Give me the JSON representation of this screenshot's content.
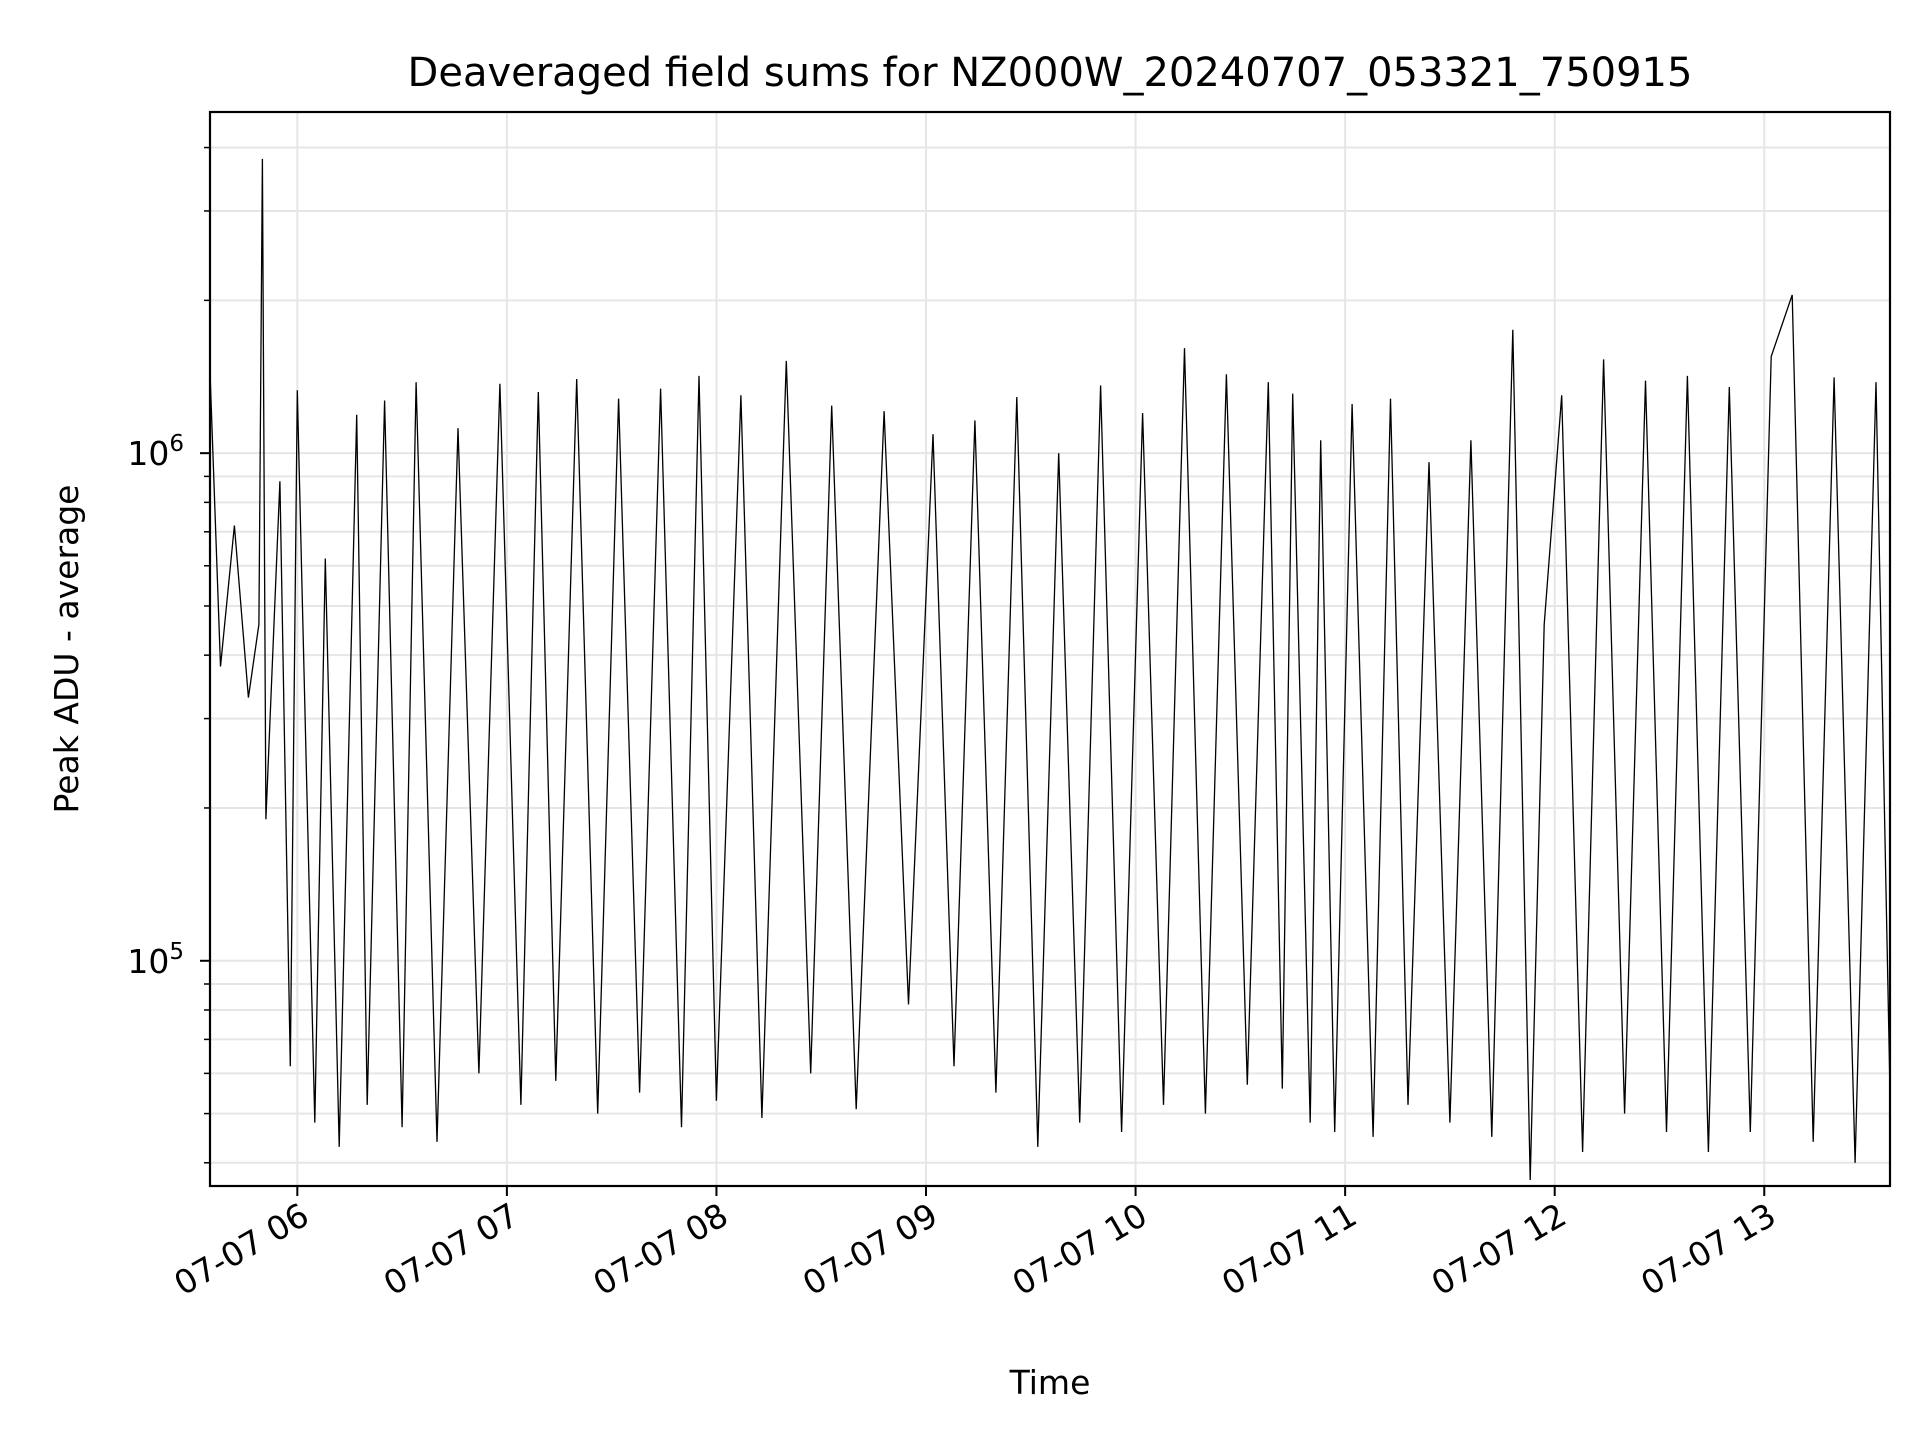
{
  "chart_data": {
    "type": "line",
    "title": "Deaveraged field sums for NZ000W_20240707_053321_750915",
    "xlabel": "Time",
    "ylabel": "Peak ADU - average",
    "yscale": "log",
    "grid": true,
    "line_color": "#000000",
    "grid_color": "#e6e6e6",
    "xlim": [
      "2024-07-07 05:35",
      "2024-07-07 13:36"
    ],
    "ylim": [
      36000,
      4700000
    ],
    "x_ticks": [
      {
        "value": "2024-07-07 06:00",
        "label": "07-07 06"
      },
      {
        "value": "2024-07-07 07:00",
        "label": "07-07 07"
      },
      {
        "value": "2024-07-07 08:00",
        "label": "07-07 08"
      },
      {
        "value": "2024-07-07 09:00",
        "label": "07-07 09"
      },
      {
        "value": "2024-07-07 10:00",
        "label": "07-07 10"
      },
      {
        "value": "2024-07-07 11:00",
        "label": "07-07 11"
      },
      {
        "value": "2024-07-07 12:00",
        "label": "07-07 12"
      },
      {
        "value": "2024-07-07 13:00",
        "label": "07-07 13"
      }
    ],
    "y_ticks": [
      {
        "value": 100000,
        "label_base": "10",
        "label_exp": "5"
      },
      {
        "value": 1000000,
        "label_base": "10",
        "label_exp": "6"
      }
    ],
    "series": [
      {
        "x": [
          "2024-07-07 05:35",
          "2024-07-07 05:38",
          "2024-07-07 05:42",
          "2024-07-07 05:46",
          "2024-07-07 05:49",
          "2024-07-07 05:50",
          "2024-07-07 05:51",
          "2024-07-07 05:55",
          "2024-07-07 05:58",
          "2024-07-07 06:00",
          "2024-07-07 06:05",
          "2024-07-07 06:08",
          "2024-07-07 06:12",
          "2024-07-07 06:17",
          "2024-07-07 06:20",
          "2024-07-07 06:25",
          "2024-07-07 06:30",
          "2024-07-07 06:34",
          "2024-07-07 06:40",
          "2024-07-07 06:46",
          "2024-07-07 06:52",
          "2024-07-07 06:58",
          "2024-07-07 07:04",
          "2024-07-07 07:09",
          "2024-07-07 07:14",
          "2024-07-07 07:20",
          "2024-07-07 07:26",
          "2024-07-07 07:32",
          "2024-07-07 07:38",
          "2024-07-07 07:44",
          "2024-07-07 07:50",
          "2024-07-07 07:55",
          "2024-07-07 08:00",
          "2024-07-07 08:07",
          "2024-07-07 08:13",
          "2024-07-07 08:20",
          "2024-07-07 08:27",
          "2024-07-07 08:33",
          "2024-07-07 08:40",
          "2024-07-07 08:48",
          "2024-07-07 08:55",
          "2024-07-07 09:02",
          "2024-07-07 09:08",
          "2024-07-07 09:14",
          "2024-07-07 09:20",
          "2024-07-07 09:26",
          "2024-07-07 09:32",
          "2024-07-07 09:38",
          "2024-07-07 09:44",
          "2024-07-07 09:50",
          "2024-07-07 09:56",
          "2024-07-07 10:02",
          "2024-07-07 10:08",
          "2024-07-07 10:14",
          "2024-07-07 10:20",
          "2024-07-07 10:26",
          "2024-07-07 10:32",
          "2024-07-07 10:38",
          "2024-07-07 10:42",
          "2024-07-07 10:45",
          "2024-07-07 10:50",
          "2024-07-07 10:53",
          "2024-07-07 10:57",
          "2024-07-07 11:02",
          "2024-07-07 11:08",
          "2024-07-07 11:13",
          "2024-07-07 11:18",
          "2024-07-07 11:24",
          "2024-07-07 11:30",
          "2024-07-07 11:36",
          "2024-07-07 11:42",
          "2024-07-07 11:48",
          "2024-07-07 11:53",
          "2024-07-07 11:57",
          "2024-07-07 12:02",
          "2024-07-07 12:08",
          "2024-07-07 12:14",
          "2024-07-07 12:20",
          "2024-07-07 12:26",
          "2024-07-07 12:32",
          "2024-07-07 12:38",
          "2024-07-07 12:44",
          "2024-07-07 12:50",
          "2024-07-07 12:56",
          "2024-07-07 13:02",
          "2024-07-07 13:08",
          "2024-07-07 13:14",
          "2024-07-07 13:20",
          "2024-07-07 13:26",
          "2024-07-07 13:32",
          "2024-07-07 13:36"
        ],
        "y": [
          1450000,
          380000,
          720000,
          330000,
          460000,
          3800000,
          190000,
          880000,
          62000,
          1330000,
          48000,
          620000,
          43000,
          1190000,
          52000,
          1270000,
          47000,
          1380000,
          44000,
          1120000,
          60000,
          1370000,
          52000,
          1320000,
          58000,
          1400000,
          50000,
          1280000,
          55000,
          1340000,
          47000,
          1420000,
          53000,
          1300000,
          49000,
          1520000,
          60000,
          1240000,
          51000,
          1210000,
          82000,
          1090000,
          62000,
          1160000,
          55000,
          1290000,
          43000,
          1000000,
          48000,
          1360000,
          46000,
          1200000,
          52000,
          1610000,
          50000,
          1430000,
          57000,
          1380000,
          56000,
          1310000,
          48000,
          1060000,
          46000,
          1250000,
          45000,
          1280000,
          52000,
          960000,
          48000,
          1060000,
          45000,
          1750000,
          37000,
          460000,
          1300000,
          42000,
          1530000,
          50000,
          1390000,
          46000,
          1420000,
          42000,
          1350000,
          46000,
          1550000,
          2050000,
          44000,
          1410000,
          40000,
          1380000,
          55000
        ]
      }
    ]
  }
}
